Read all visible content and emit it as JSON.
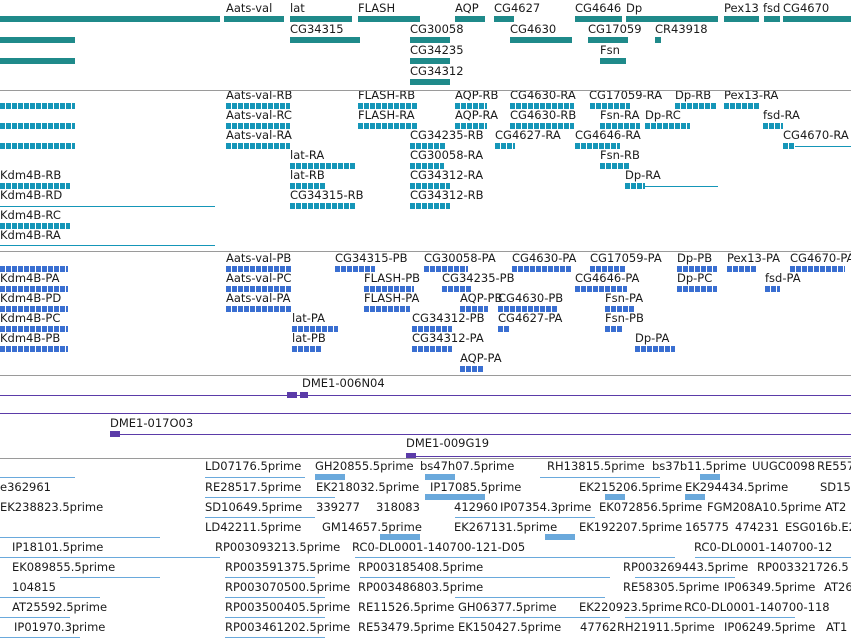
{
  "genes_track": {
    "labels": [
      "Aats-val",
      "lat",
      "FLASH",
      "AQP",
      "CG4627",
      "CG4646",
      "Dp",
      "Pex13",
      "fsd",
      "CG4670",
      "CG34315",
      "CG30058",
      "CG4630",
      "CG17059",
      "CR43918",
      "CG34235",
      "Fsn",
      "CG34312"
    ]
  },
  "transcripts_track": {
    "labels": [
      "Aats-val-RB",
      "FLASH-RB",
      "AQP-RB",
      "CG4630-RA",
      "CG17059-RA",
      "Dp-RB",
      "Pex13-RA",
      "Aats-val-RC",
      "FLASH-RA",
      "AQP-RA",
      "CG4630-RB",
      "Fsn-RA",
      "Dp-RC",
      "fsd-RA",
      "Aats-val-RA",
      "CG34235-RB",
      "CG4627-RA",
      "CG4646-RA",
      "CG4670-RA",
      "lat-RA",
      "CG30058-RA",
      "Fsn-RB",
      "Kdm4B-RB",
      "lat-RB",
      "CG34312-RA",
      "Dp-RA",
      "Kdm4B-RD",
      "CG34315-RB",
      "CG34312-RB",
      "Kdm4B-RC",
      "Kdm4B-RA"
    ]
  },
  "proteins_track": {
    "labels": [
      "Aats-val-PB",
      "CG34315-PB",
      "CG30058-PA",
      "CG4630-PA",
      "CG17059-PA",
      "Dp-PB",
      "Pex13-PA",
      "CG4670-PA",
      "Kdm4B-PA",
      "Aats-val-PC",
      "FLASH-PB",
      "CG34235-PB",
      "CG4646-PA",
      "Dp-PC",
      "fsd-PA",
      "Kdm4B-PD",
      "Aats-val-PA",
      "FLASH-PA",
      "AQP-PB",
      "CG4630-PB",
      "Fsn-PA",
      "Kdm4B-PC",
      "lat-PA",
      "CG34312-PB",
      "CG4627-PA",
      "Fsn-PB",
      "Kdm4B-PB",
      "lat-PB",
      "CG34312-PA",
      "Dp-PA",
      "AQP-PA"
    ]
  },
  "clones_track": {
    "labels": [
      "DME1-006N04",
      "DME1-017O03",
      "DME1-009G19"
    ]
  },
  "est_track": {
    "labels": [
      "LD07176.5prime",
      "GH20855.5prime",
      "bs47h07.5prime",
      "RH13815.5prime",
      "bs37b11.5prime",
      "UUGC0098",
      "RE557",
      "e362961",
      "RE28517.5prime",
      "EK218032.5prime",
      "IP17085.5prime",
      "EK215206.5prime",
      "EK294434.5prime",
      "SD15",
      "EK238823.5prime",
      "SD10649.5prime",
      "339277",
      "318083",
      "412960",
      "IP07354.3prime",
      "EK072856.5prime",
      "FGM208A10.5prime",
      "AT2",
      "LD42211.5prime",
      "GM14657.5prime",
      "EK267131.5prime",
      "EK192207.5prime",
      "165775",
      "474231",
      "ESG016b.E2",
      "IP18101.5prime",
      "RP003093213.5prime",
      "RC0-DL0001-140700-121-D05",
      "RC0-DL0001-140700-12",
      "EK089855.5prime",
      "RP003591375.5prime",
      "RP003185408.5prime",
      "RP003269443.5prime",
      "RP003321726.5",
      "104815",
      "RP003070500.5prime",
      "RP003486803.5prime",
      "RE58305.5prime",
      "IP06349.5prime",
      "AT26",
      "AT25592.5prime",
      "RP003500405.5prime",
      "RE11526.5prime",
      "GH06377.5prime",
      "EK220923.5prime",
      "RC0-DL0001-140700-118",
      "IP01970.3prime",
      "RP003461202.5prime",
      "RE53479.5prime",
      "EK150427.5prime",
      "47762",
      "RH21911.5prime",
      "IP06249.5prime",
      "AT1"
    ]
  }
}
